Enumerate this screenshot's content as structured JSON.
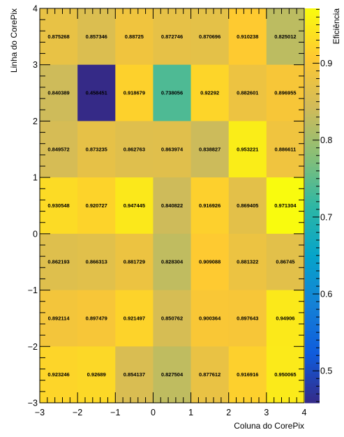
{
  "chart_data": {
    "type": "heatmap",
    "xlabel": "Coluna do CorePix",
    "ylabel": "Linha do CorePix",
    "colorbar_label": "Eficiência",
    "x_edges": [
      -3,
      -2,
      -1,
      0,
      1,
      2,
      3,
      4
    ],
    "y_edges": [
      -3,
      -2,
      -1,
      0,
      1,
      2,
      3,
      4
    ],
    "xlim": [
      -3,
      4
    ],
    "ylim": [
      -3,
      4
    ],
    "x_ticks": [
      "−3",
      "−2",
      "−1",
      "0",
      "1",
      "2",
      "3",
      "4"
    ],
    "y_ticks": [
      "−3",
      "−2",
      "−1",
      "0",
      "1",
      "2",
      "3",
      "4"
    ],
    "colorbar_range": [
      0.458451,
      0.971304
    ],
    "colorbar_ticks": [
      "0.5",
      "0.6",
      "0.7",
      "0.8",
      "0.9"
    ],
    "colorbar_tick_values": [
      0.5,
      0.6,
      0.7,
      0.8,
      0.9
    ],
    "values_top_to_bottom": [
      [
        "0.875268",
        "0.857346",
        "0.88725",
        "0.872746",
        "0.870696",
        "0.910238",
        "0.825012"
      ],
      [
        "0.840389",
        "0.458451",
        "0.918679",
        "0.738056",
        "0.92292",
        "0.882601",
        "0.896955"
      ],
      [
        "0.849572",
        "0.873235",
        "0.862763",
        "0.863974",
        "0.838827",
        "0.953221",
        "0.886611"
      ],
      [
        "0.930548",
        "0.920727",
        "0.947445",
        "0.840822",
        "0.916926",
        "0.869405",
        "0.971304"
      ],
      [
        "0.862193",
        "0.866313",
        "0.881729",
        "0.828304",
        "0.909088",
        "0.881322",
        "0.86745"
      ],
      [
        "0.892114",
        "0.897479",
        "0.921497",
        "0.850762",
        "0.900364",
        "0.897643",
        "0.94906"
      ],
      [
        "0.923246",
        "0.92689",
        "0.854137",
        "0.827504",
        "0.877612",
        "0.916916",
        "0.950065"
      ]
    ],
    "colormap": [
      "#352a87",
      "#0f5cdd",
      "#1481d6",
      "#06a4ca",
      "#2eb7a4",
      "#87bf77",
      "#d1bb59",
      "#fec832",
      "#f9fb0e"
    ]
  }
}
